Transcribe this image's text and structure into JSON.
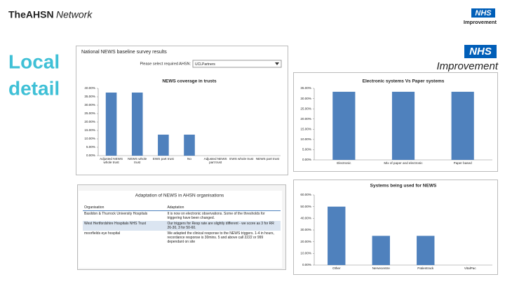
{
  "header": {
    "network_bold": "TheAHSN",
    "network_italic": "Network",
    "logo_small_nhs": "NHS",
    "logo_small_sub": "Improvement",
    "logo_nhs": "NHS",
    "logo_sub": "Improvement",
    "side_title_1": "Local",
    "side_title_2": "detail"
  },
  "survey": {
    "title": "National NEWS baseline survey results",
    "select_label": "Please select required AHSN:",
    "select_value": "UCLPartners"
  },
  "chart_data": [
    {
      "type": "bar",
      "title": "NEWS coverage in trusts",
      "categories": [
        "Adjusted NEWS whole trust",
        "NEWS whole trust",
        "EWS part trust",
        "No",
        "Adjusted NEWS part trust",
        "EWS whole trust",
        "NEWS part trust"
      ],
      "values": [
        37.5,
        37.5,
        12.5,
        12.5,
        0,
        0,
        0
      ],
      "color": "#4f81bd",
      "ylim": [
        0,
        40
      ],
      "yticks": [
        {
          "value": 0,
          "label": "0.00%"
        },
        {
          "value": 5,
          "label": "5.00%"
        },
        {
          "value": 10,
          "label": "10.00%"
        },
        {
          "value": 15,
          "label": "15.00%"
        },
        {
          "value": 20,
          "label": "20.00%"
        },
        {
          "value": 25,
          "label": "25.00%"
        },
        {
          "value": 30,
          "label": "30.00%"
        },
        {
          "value": 35,
          "label": "35.00%"
        },
        {
          "value": 40,
          "label": "40.00%"
        }
      ],
      "grid": false
    },
    {
      "type": "bar",
      "title": "Electronic systems Vs Paper systems",
      "categories": [
        "Electronic",
        "Mix of paper and electronic",
        "Paper based"
      ],
      "values": [
        33.33,
        33.33,
        33.33
      ],
      "color": "#4f81bd",
      "ylim": [
        0,
        35
      ],
      "yticks": [
        {
          "value": 0,
          "label": "0.00%"
        },
        {
          "value": 5,
          "label": "5.00%"
        },
        {
          "value": 10,
          "label": "10.00%"
        },
        {
          "value": 15,
          "label": "15.00%"
        },
        {
          "value": 20,
          "label": "20.00%"
        },
        {
          "value": 25,
          "label": "25.00%"
        },
        {
          "value": 30,
          "label": "30.00%"
        },
        {
          "value": 35,
          "label": "35.00%"
        }
      ],
      "grid": false
    },
    {
      "type": "bar",
      "title": "Systems being used for NEWS",
      "categories": [
        "Other",
        "Nervecentre",
        "Patientrack",
        "VitalPac"
      ],
      "values": [
        50,
        25,
        25,
        0
      ],
      "color": "#4f81bd",
      "ylim": [
        0,
        60
      ],
      "yticks": [
        {
          "value": 0,
          "label": "0.00%"
        },
        {
          "value": 10,
          "label": "10.00%"
        },
        {
          "value": 20,
          "label": "20.00%"
        },
        {
          "value": 30,
          "label": "30.00%"
        },
        {
          "value": 40,
          "label": "40.00%"
        },
        {
          "value": 50,
          "label": "50.00%"
        },
        {
          "value": 60,
          "label": "60.00%"
        }
      ],
      "grid": false
    }
  ],
  "table": {
    "title": "Adaptation of NEWS in AHSN organisations",
    "columns": [
      "Organisation",
      "Adaptation"
    ],
    "rows": [
      [
        "Basildon & Thurrock University Hospitals",
        "It is now on electronic observations. Some of the thresholds for triggering have been changed."
      ],
      [
        "West Hertfordshire Hospitals NHS Trust",
        "Our triggers for Resp rate are slightly different - we score as 3 for RR 26-30, 3 for 50-60."
      ],
      [
        "moorfields eye hospital",
        "We adapted the clinical response to the NEWS triggers. 1-4 in hours, recordance response is 30mins. 5 and above call 2222 or 999 dependant on site"
      ]
    ]
  }
}
